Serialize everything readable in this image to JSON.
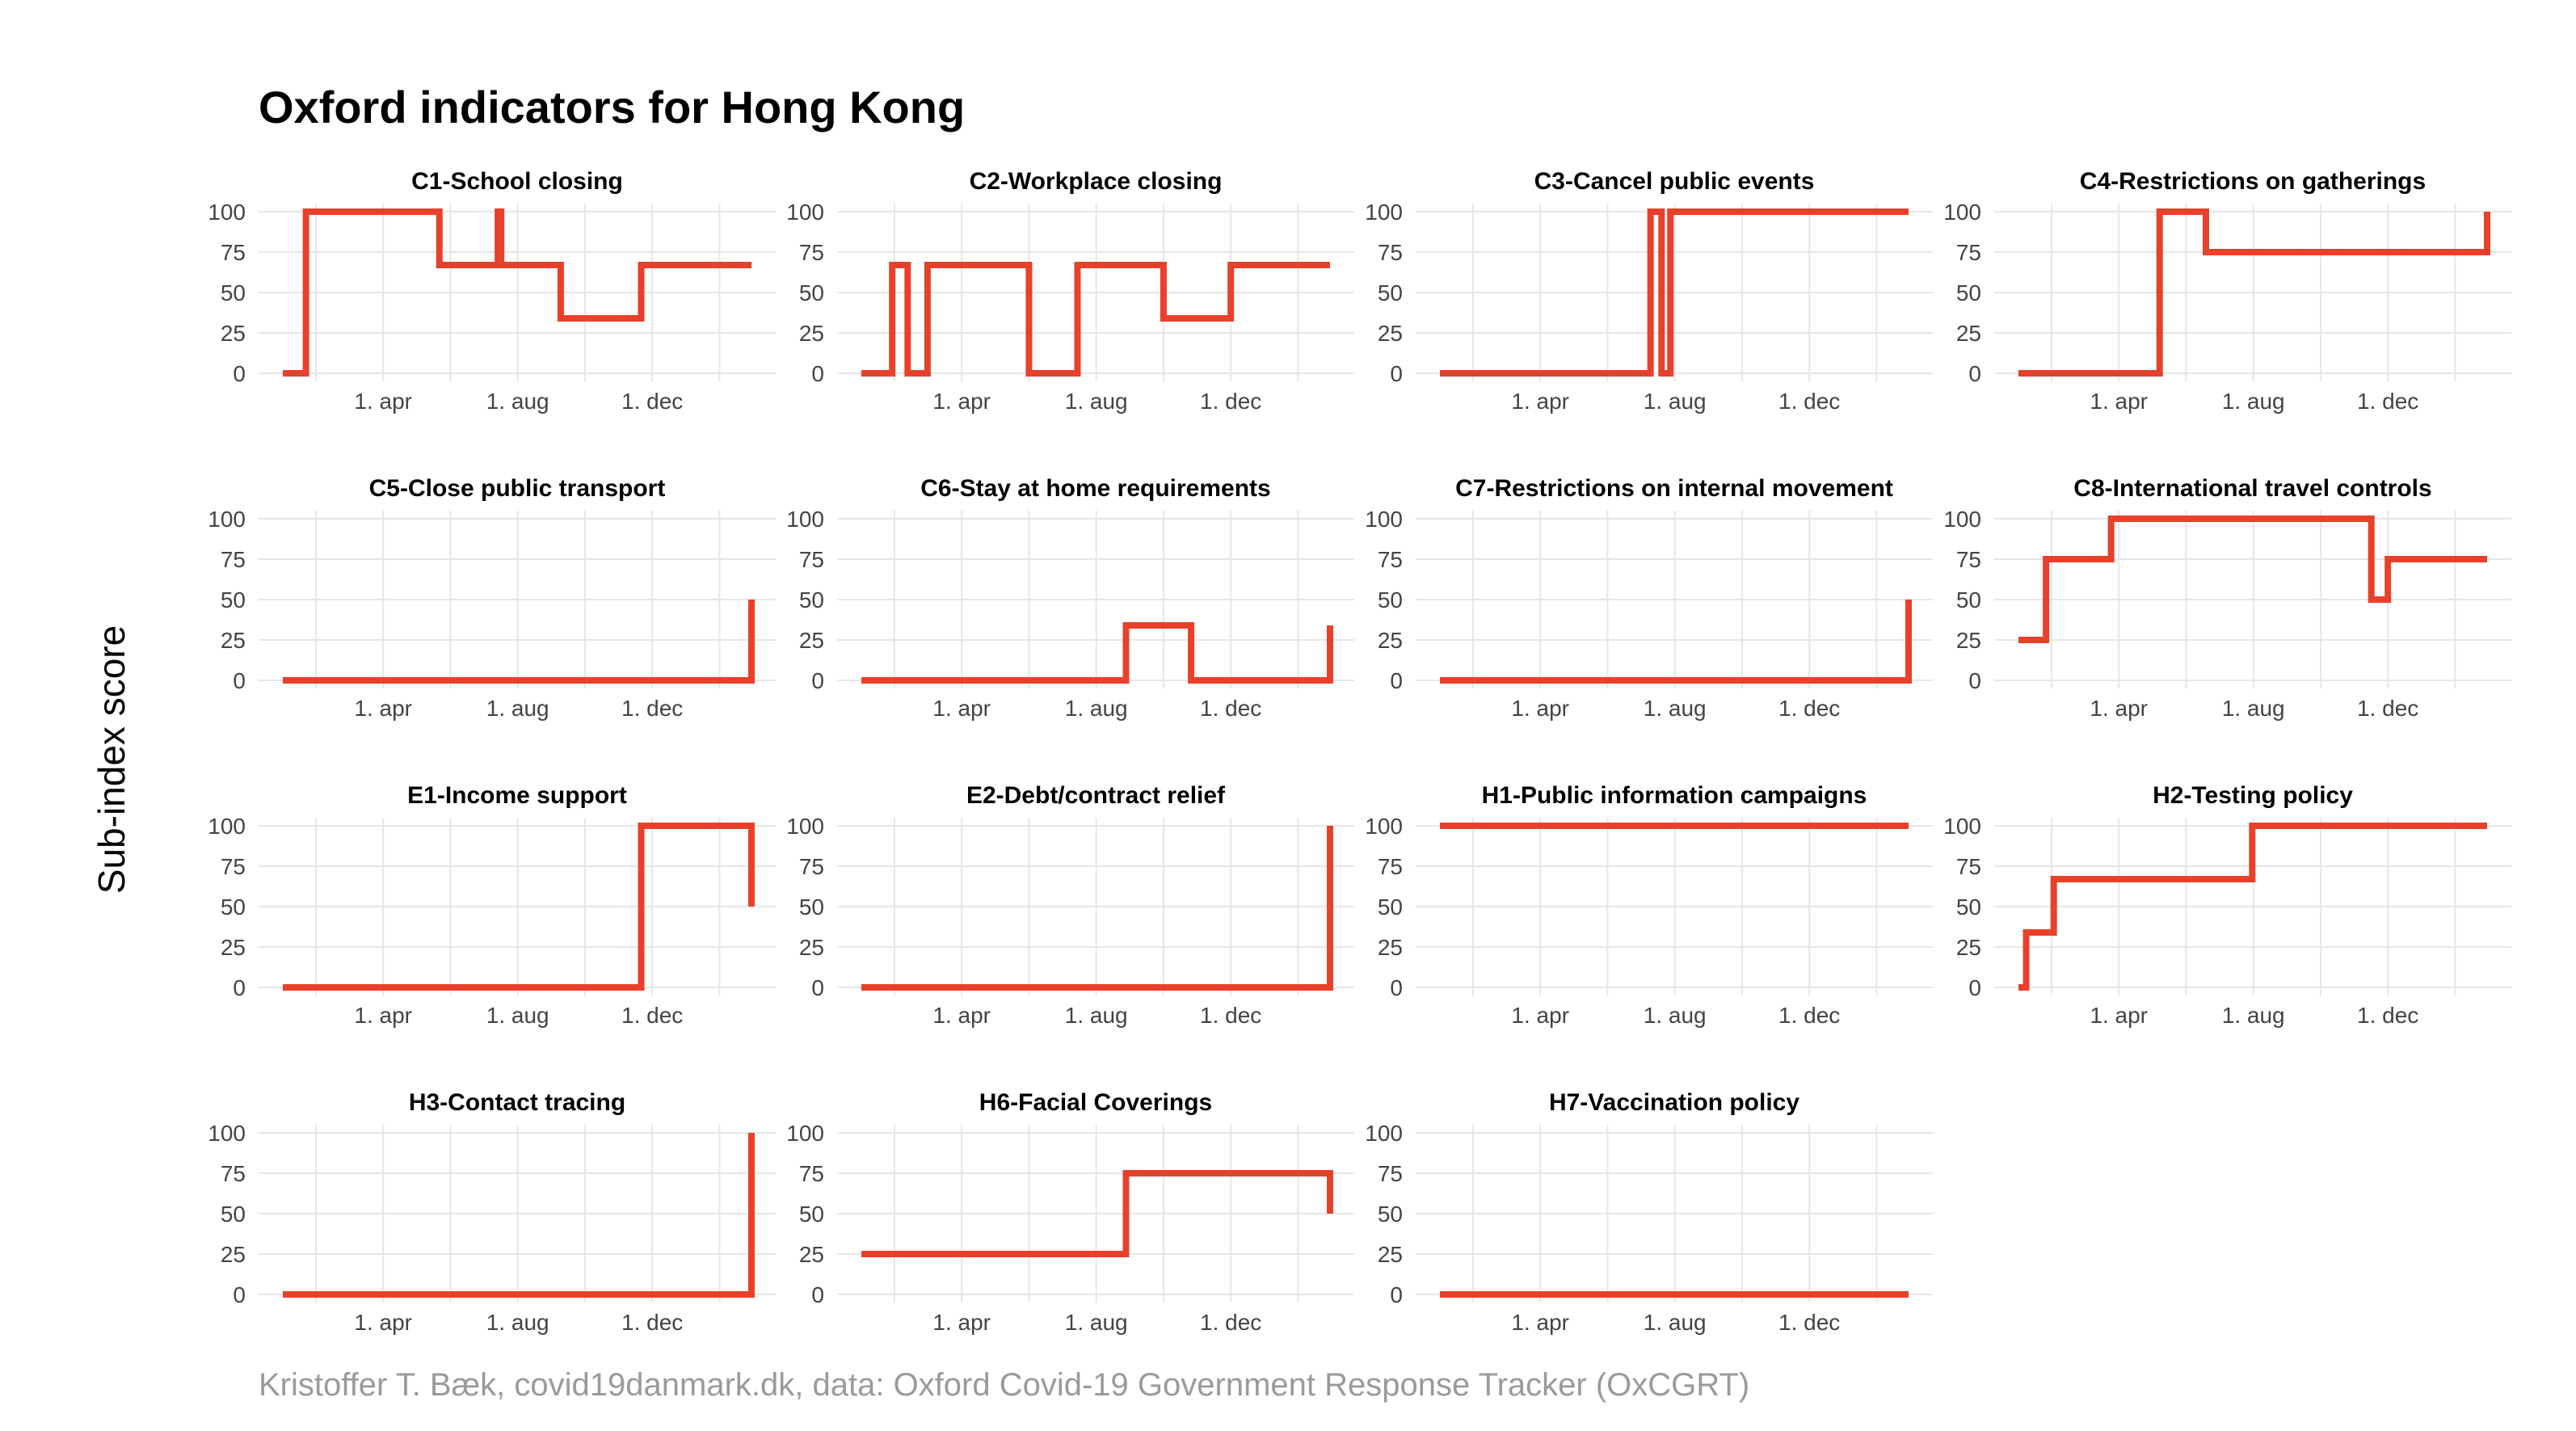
{
  "title": "Oxford indicators for Hong Kong",
  "ylabel": "Sub-index score",
  "caption": "Kristoffer T. Bæk, covid19danmark.dk, data: Oxford Covid-19 Government Response Tracker (OxCGRT)",
  "colors": {
    "line": "#E8402A",
    "grid": "#e6e6e6",
    "tick": "#444444",
    "title": "#000000"
  },
  "chart_data": [
    {
      "type": "line",
      "title": "C1-School closing",
      "x_ticks": [
        "1. apr",
        "1. aug",
        "1. dec"
      ],
      "y_ticks": [
        0,
        25,
        50,
        75,
        100
      ],
      "ylim": [
        0,
        100
      ],
      "x_range": [
        "2020-01-01",
        "2021-03-01"
      ],
      "grid": true,
      "x": [
        "2020-01-01",
        "2020-01-22",
        "2020-05-01",
        "2020-05-22",
        "2020-06-15",
        "2020-07-14",
        "2020-07-16",
        "2020-07-17",
        "2020-07-19",
        "2020-09-09",
        "2020-09-29",
        "2020-11-21",
        "2020-12-07",
        "2021-03-01"
      ],
      "y": [
        0,
        100,
        100,
        67,
        67,
        100,
        100,
        67,
        67,
        34,
        34,
        67,
        67,
        67
      ]
    },
    {
      "type": "line",
      "title": "C2-Workplace closing",
      "x_ticks": [
        "1. apr",
        "1. aug",
        "1. dec"
      ],
      "y_ticks": [
        0,
        25,
        50,
        75,
        100
      ],
      "ylim": [
        0,
        100
      ],
      "x_range": [
        "2020-01-01",
        "2021-03-01"
      ],
      "grid": true,
      "x": [
        "2020-01-01",
        "2020-01-22",
        "2020-01-29",
        "2020-02-05",
        "2020-02-12",
        "2020-03-01",
        "2020-05-01",
        "2020-06-01",
        "2020-07-01",
        "2020-07-15",
        "2020-09-01",
        "2020-10-01",
        "2020-11-01",
        "2020-12-01",
        "2021-03-01"
      ],
      "y": [
        0,
        0,
        67,
        67,
        0,
        67,
        67,
        0,
        0,
        67,
        67,
        34,
        34,
        67,
        67
      ]
    },
    {
      "type": "line",
      "title": "C3-Cancel public events",
      "x_ticks": [
        "1. apr",
        "1. aug",
        "1. dec"
      ],
      "y_ticks": [
        0,
        25,
        50,
        75,
        100
      ],
      "ylim": [
        0,
        100
      ],
      "x_range": [
        "2020-01-01",
        "2021-03-01"
      ],
      "grid": true,
      "x": [
        "2020-01-01",
        "2020-01-22",
        "2020-07-10",
        "2020-07-16",
        "2020-07-20",
        "2020-07-28",
        "2021-03-01"
      ],
      "y": [
        0,
        0,
        100,
        100,
        0,
        100,
        100
      ]
    },
    {
      "type": "line",
      "title": "C4-Restrictions on gatherings",
      "x_ticks": [
        "1. apr",
        "1. aug",
        "1. dec"
      ],
      "y_ticks": [
        0,
        25,
        50,
        75,
        100
      ],
      "ylim": [
        0,
        100
      ],
      "x_range": [
        "2020-01-01",
        "2021-03-01"
      ],
      "grid": true,
      "x": [
        "2020-01-01",
        "2020-03-29",
        "2020-05-08",
        "2020-06-19",
        "2021-03-01"
      ],
      "y": [
        0,
        0,
        100,
        75,
        100
      ]
    },
    {
      "type": "line",
      "title": "C5-Close public transport",
      "x_ticks": [
        "1. apr",
        "1. aug",
        "1. dec"
      ],
      "y_ticks": [
        0,
        25,
        50,
        75,
        100
      ],
      "ylim": [
        0,
        100
      ],
      "x_range": [
        "2020-01-01",
        "2021-03-01"
      ],
      "grid": true,
      "x": [
        "2020-01-01",
        "2020-11-21",
        "2021-03-01"
      ],
      "y": [
        0,
        0,
        50
      ]
    },
    {
      "type": "line",
      "title": "C6-Stay at home requirements",
      "x_ticks": [
        "1. apr",
        "1. aug",
        "1. dec"
      ],
      "y_ticks": [
        0,
        25,
        50,
        75,
        100
      ],
      "ylim": [
        0,
        100
      ],
      "x_range": [
        "2020-01-01",
        "2021-03-01"
      ],
      "grid": true,
      "x": [
        "2020-01-01",
        "2020-02-07",
        "2020-08-28",
        "2020-10-26",
        "2021-03-01"
      ],
      "y": [
        0,
        0,
        34,
        0,
        34
      ]
    },
    {
      "type": "line",
      "title": "C7-Restrictions on internal movement",
      "x_ticks": [
        "1. apr",
        "1. aug",
        "1. dec"
      ],
      "y_ticks": [
        0,
        25,
        50,
        75,
        100
      ],
      "ylim": [
        0,
        100
      ],
      "x_range": [
        "2020-01-01",
        "2021-03-01"
      ],
      "grid": true,
      "x": [
        "2020-01-01",
        "2020-11-21",
        "2021-03-01"
      ],
      "y": [
        0,
        0,
        50
      ]
    },
    {
      "type": "line",
      "title": "C8-International travel controls",
      "x_ticks": [
        "1. apr",
        "1. aug",
        "1. dec"
      ],
      "y_ticks": [
        0,
        25,
        50,
        75,
        100
      ],
      "ylim": [
        0,
        100
      ],
      "x_range": [
        "2020-01-01",
        "2021-03-01"
      ],
      "grid": true,
      "x": [
        "2020-01-01",
        "2020-01-26",
        "2020-03-25",
        "2020-11-16",
        "2020-12-01",
        "2021-03-01"
      ],
      "y": [
        25,
        75,
        100,
        50,
        75,
        75
      ]
    },
    {
      "type": "line",
      "title": "E1-Income support",
      "x_ticks": [
        "1. apr",
        "1. aug",
        "1. dec"
      ],
      "y_ticks": [
        0,
        25,
        50,
        75,
        100
      ],
      "ylim": [
        0,
        100
      ],
      "x_range": [
        "2020-01-01",
        "2021-03-01"
      ],
      "grid": true,
      "x": [
        "2020-01-01",
        "2020-02-17",
        "2020-11-21",
        "2021-03-01"
      ],
      "y": [
        0,
        0,
        100,
        50
      ]
    },
    {
      "type": "line",
      "title": "E2-Debt/contract relief",
      "x_ticks": [
        "1. apr",
        "1. aug",
        "1. dec"
      ],
      "y_ticks": [
        0,
        25,
        50,
        75,
        100
      ],
      "ylim": [
        0,
        100
      ],
      "x_range": [
        "2020-01-01",
        "2021-03-01"
      ],
      "grid": true,
      "x": [
        "2020-01-01",
        "2020-02-17",
        "2021-03-01"
      ],
      "y": [
        0,
        0,
        100
      ]
    },
    {
      "type": "line",
      "title": "H1-Public information campaigns",
      "x_ticks": [
        "1. apr",
        "1. aug",
        "1. dec"
      ],
      "y_ticks": [
        0,
        25,
        50,
        75,
        100
      ],
      "ylim": [
        0,
        100
      ],
      "x_range": [
        "2020-01-01",
        "2021-03-01"
      ],
      "grid": true,
      "x": [
        "2020-01-01",
        "2021-03-01"
      ],
      "y": [
        100,
        100
      ]
    },
    {
      "type": "line",
      "title": "H2-Testing policy",
      "x_ticks": [
        "1. apr",
        "1. aug",
        "1. dec"
      ],
      "y_ticks": [
        0,
        25,
        50,
        75,
        100
      ],
      "ylim": [
        0,
        100
      ],
      "x_range": [
        "2020-01-01",
        "2021-03-01"
      ],
      "grid": true,
      "x": [
        "2020-01-01",
        "2020-01-08",
        "2020-02-02",
        "2020-07-31",
        "2021-03-01"
      ],
      "y": [
        0,
        34,
        67,
        100,
        100
      ]
    },
    {
      "type": "line",
      "title": "H3-Contact tracing",
      "x_ticks": [
        "1. apr",
        "1. aug",
        "1. dec"
      ],
      "y_ticks": [
        0,
        25,
        50,
        75,
        100
      ],
      "ylim": [
        0,
        100
      ],
      "x_range": [
        "2020-01-01",
        "2021-03-01"
      ],
      "grid": true,
      "x": [
        "2020-01-01",
        "2020-01-15",
        "2021-03-01"
      ],
      "y": [
        0,
        0,
        100
      ]
    },
    {
      "type": "line",
      "title": "H6-Facial Coverings",
      "x_ticks": [
        "1. apr",
        "1. aug",
        "1. dec"
      ],
      "y_ticks": [
        0,
        25,
        50,
        75,
        100
      ],
      "ylim": [
        0,
        100
      ],
      "x_range": [
        "2020-01-01",
        "2021-03-01"
      ],
      "grid": true,
      "x": [
        "2020-01-01",
        "2020-07-23",
        "2020-08-28",
        "2021-03-01"
      ],
      "y": [
        25,
        25,
        75,
        50
      ]
    },
    {
      "type": "line",
      "title": "H7-Vaccination policy",
      "x_ticks": [
        "1. apr",
        "1. aug",
        "1. dec"
      ],
      "y_ticks": [
        0,
        25,
        50,
        75,
        100
      ],
      "ylim": [
        0,
        100
      ],
      "x_range": [
        "2020-01-01",
        "2021-03-01"
      ],
      "grid": true,
      "x": [
        "2020-01-01",
        "2021-03-01"
      ],
      "y": [
        0,
        0
      ]
    }
  ]
}
